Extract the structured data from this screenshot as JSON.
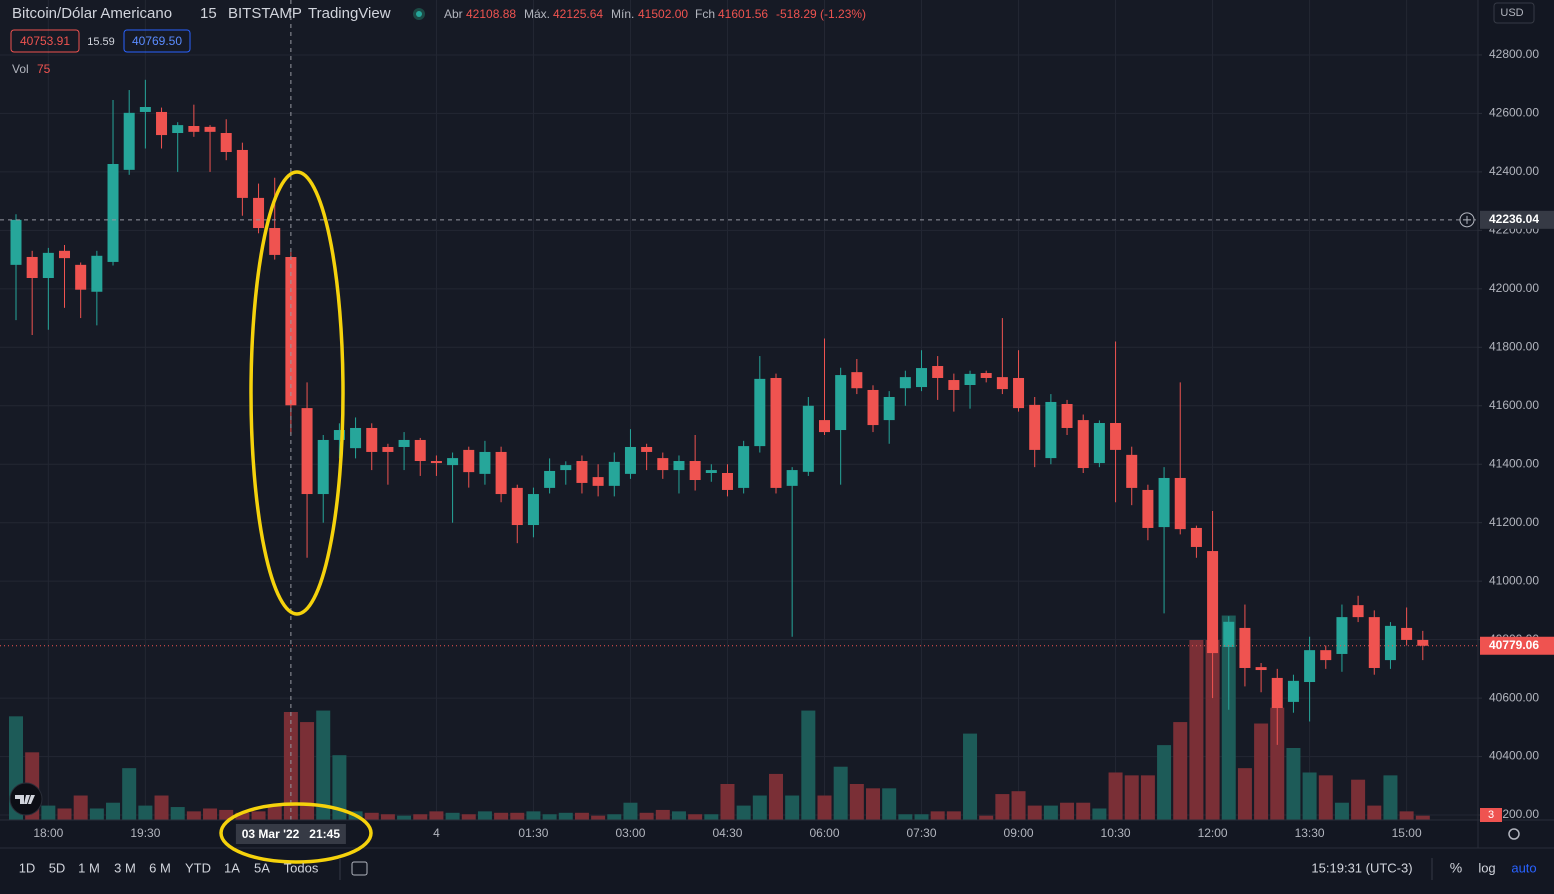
{
  "header": {
    "symbol": "Bitcoin/Dólar Americano",
    "interval": "15",
    "exchange": "BITSTAMP",
    "source": "TradingView",
    "open_label": "Abr",
    "open": "42108.88",
    "high_label": "Máx.",
    "high": "42125.64",
    "low_label": "Mín.",
    "low": "41502.00",
    "close_label": "Fch",
    "close": "41601.56",
    "change": "-518.29 (-1.23%)",
    "bid": "40753.91",
    "spread": "15.59",
    "ask": "40769.50",
    "volume_label": "Vol",
    "currency": "USD"
  },
  "toolbar": {
    "ranges": [
      "1D",
      "5D",
      "1 M",
      "3 M",
      "6 M",
      "YTD",
      "1A",
      "5A",
      "Todos"
    ],
    "clock": "15:19:31 (UTC-3)",
    "percent": "%",
    "log": "log",
    "auto": "auto"
  },
  "chart_data": {
    "type": "candlestick",
    "up_color": "#26a69a",
    "down_color": "#ef5350",
    "volume_up_color": "#1d5b58",
    "volume_down_color": "#7a2f36",
    "ylim": [
      40183,
      42988
    ],
    "yticks": [
      {
        "value": 40200,
        "label": "40200.00"
      },
      {
        "value": 40400,
        "label": "40400.00"
      },
      {
        "value": 40600,
        "label": "40600.00"
      },
      {
        "value": 40800,
        "label": "40800.00"
      },
      {
        "value": 41000,
        "label": "41000.00"
      },
      {
        "value": 41200,
        "label": "41200.00"
      },
      {
        "value": 41400,
        "label": "41400.00"
      },
      {
        "value": 41600,
        "label": "41600.00"
      },
      {
        "value": 41800,
        "label": "41800.00"
      },
      {
        "value": 42000,
        "label": "42000.00"
      },
      {
        "value": 42200,
        "label": "42200.00"
      },
      {
        "value": 42400,
        "label": "42400.00"
      },
      {
        "value": 42600,
        "label": "42600.00"
      },
      {
        "value": 42800,
        "label": "42800.00"
      }
    ],
    "grid": true,
    "crosshair_price": 42236.04,
    "crosshair_time": "03 Mar '22   21:45",
    "categories": [
      null,
      null,
      "18:00",
      null,
      null,
      null,
      null,
      null,
      "19:30",
      null,
      null,
      null,
      null,
      null,
      null,
      null,
      null,
      null,
      null,
      null,
      null,
      null,
      null,
      null,
      null,
      null,
      "4",
      null,
      null,
      null,
      null,
      null,
      "01:30",
      null,
      null,
      null,
      null,
      null,
      "03:00",
      null,
      null,
      null,
      null,
      null,
      "04:30",
      null,
      null,
      null,
      null,
      null,
      "06:00",
      null,
      null,
      null,
      null,
      null,
      "07:30",
      null,
      null,
      null,
      null,
      null,
      "09:00",
      null,
      null,
      null,
      null,
      null,
      "10:30",
      null,
      null,
      null,
      null,
      null,
      "12:00",
      null,
      null,
      null,
      null,
      null,
      "13:30",
      null,
      null,
      null,
      null,
      null,
      "15:00",
      null
    ],
    "open": [
      42082,
      42109,
      42037,
      42130,
      42082,
      41990,
      42092,
      42407,
      42605,
      42605,
      42533,
      42557,
      42554,
      42533,
      42475,
      42311,
      42208,
      42108.88,
      41592,
      41298,
      41483,
      41455,
      41524,
      41459,
      41459,
      41483,
      41411,
      41397,
      41449,
      41367,
      41442,
      41319,
      41192,
      41319,
      41380,
      41411,
      41356,
      41326,
      41367,
      41459,
      41421,
      41380,
      41411,
      41370,
      41370,
      41319,
      41462,
      41695,
      41326,
      41374,
      41551,
      41517,
      41715,
      41654,
      41551,
      41660,
      41664,
      41736,
      41688,
      41671,
      41712,
      41698,
      41695,
      41603,
      41421,
      41606,
      41551,
      41404,
      41541,
      41432,
      41312,
      41185,
      41353,
      41182,
      41103,
      40775,
      40840,
      40706,
      40669,
      40587,
      40655,
      40764,
      40751,
      40918,
      40877,
      40730,
      40840,
      40799
    ],
    "high": [
      42255,
      42130,
      42140,
      42150,
      42090,
      42130,
      42646,
      42680,
      42715,
      42620,
      42570,
      42630,
      42560,
      42580,
      42500,
      42360,
      42380,
      42125.64,
      41680,
      41500,
      41540,
      41560,
      41540,
      41470,
      41510,
      41490,
      41430,
      41440,
      41460,
      41480,
      41460,
      41330,
      41320,
      41420,
      41410,
      41430,
      41400,
      41440,
      41520,
      41470,
      41440,
      41430,
      41500,
      41400,
      41400,
      41480,
      41770,
      41710,
      41390,
      41630,
      41830,
      41730,
      41760,
      41670,
      41650,
      41720,
      41790,
      41770,
      41710,
      41720,
      41720,
      41900,
      41790,
      41630,
      41640,
      41620,
      41570,
      41550,
      41820,
      41460,
      41330,
      41390,
      41680,
      41190,
      41240,
      40880,
      40920,
      40720,
      40700,
      40680,
      40810,
      40780,
      40920,
      40950,
      40900,
      40860,
      40910,
      40830
    ],
    "low": [
      41893,
      41842,
      41860,
      41935,
      41900,
      41875,
      42080,
      42390,
      42480,
      42480,
      42400,
      42520,
      42400,
      42440,
      42250,
      42190,
      42100,
      41502,
      41080,
      41200,
      41420,
      41420,
      41380,
      41330,
      41380,
      41360,
      41360,
      41200,
      41320,
      41330,
      41270,
      41130,
      41150,
      41300,
      41330,
      41300,
      41290,
      41290,
      41350,
      41380,
      41350,
      41300,
      41310,
      41340,
      41290,
      41300,
      41440,
      41300,
      40810,
      41360,
      41500,
      41330,
      41640,
      41510,
      41470,
      41600,
      41650,
      41620,
      41580,
      41590,
      41680,
      41640,
      41580,
      41390,
      41400,
      41500,
      41370,
      41390,
      41270,
      41260,
      41140,
      40890,
      41160,
      41080,
      40600,
      40560,
      40640,
      40620,
      40440,
      40550,
      40520,
      40700,
      40690,
      40860,
      40680,
      40700,
      40780,
      40730
    ],
    "close": [
      42236,
      42037,
      42123,
      42105,
      41997,
      42113,
      42427,
      42602,
      42622,
      42526,
      42560,
      42537,
      42537,
      42468,
      42311,
      42208,
      42116,
      41601.56,
      41298,
      41483,
      41517,
      41524,
      41442,
      41442,
      41483,
      41411,
      41404,
      41421,
      41373,
      41442,
      41298,
      41192,
      41298,
      41377,
      41397,
      41336,
      41326,
      41408,
      41459,
      41442,
      41380,
      41411,
      41346,
      41380,
      41312,
      41462,
      41692,
      41319,
      41380,
      41600,
      41510,
      41705,
      41660,
      41534,
      41630,
      41698,
      41729,
      41695,
      41654,
      41709,
      41695,
      41657,
      41592,
      41449,
      41613,
      41524,
      41387,
      41541,
      41449,
      41319,
      41182,
      41353,
      41178,
      41117,
      40754,
      40861,
      40703,
      40696,
      40566,
      40659,
      40764,
      40730,
      40877,
      40877,
      40703,
      40847,
      40799,
      40779.06
    ],
    "volume": [
      72,
      47,
      10,
      8,
      17,
      8,
      12,
      36,
      10,
      17,
      9,
      6,
      8,
      7,
      5,
      6,
      10,
      75,
      68,
      76,
      45,
      6,
      5,
      4,
      3,
      4,
      6,
      5,
      4,
      6,
      5,
      5,
      6,
      4,
      5,
      5,
      3,
      4,
      12,
      5,
      7,
      6,
      4,
      4,
      25,
      10,
      17,
      32,
      17,
      76,
      17,
      37,
      25,
      22,
      22,
      4,
      4,
      6,
      6,
      60,
      3,
      18,
      20,
      10,
      10,
      12,
      12,
      8,
      33,
      31,
      31,
      52,
      68,
      125,
      125,
      142,
      36,
      67,
      78,
      50,
      33,
      31,
      12,
      28,
      10,
      31,
      6,
      3
    ]
  }
}
